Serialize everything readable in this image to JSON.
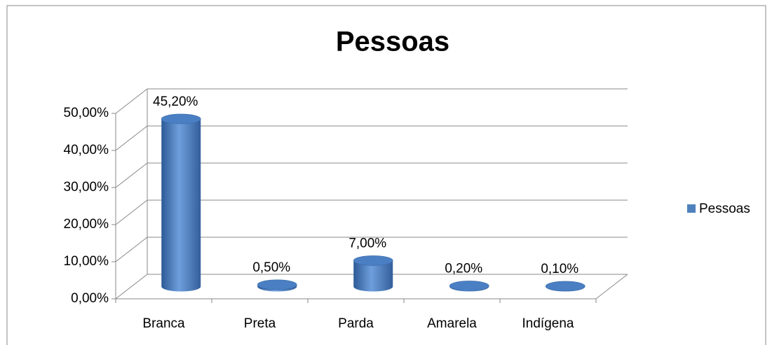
{
  "chart_data": {
    "type": "bar3d",
    "title": "Pessoas",
    "categories": [
      "Branca",
      "Preta",
      "Parda",
      "Amarela",
      "Indígena"
    ],
    "series": [
      {
        "name": "Pessoas",
        "color": "#4f81bd",
        "values": [
          45.2,
          0.5,
          7.0,
          0.2,
          0.1
        ],
        "value_labels": [
          "45,20%",
          "0,50%",
          "7,00%",
          "0,20%",
          "0,10%"
        ]
      }
    ],
    "ylim": [
      0,
      50
    ],
    "yticks": [
      {
        "value": 0,
        "label": "0,00%"
      },
      {
        "value": 10,
        "label": "10,00%"
      },
      {
        "value": 20,
        "label": "20,00%"
      },
      {
        "value": 30,
        "label": "30,00%"
      },
      {
        "value": 40,
        "label": "40,00%"
      },
      {
        "value": 50,
        "label": "50,00%"
      }
    ],
    "grid": true,
    "legend": "right"
  }
}
